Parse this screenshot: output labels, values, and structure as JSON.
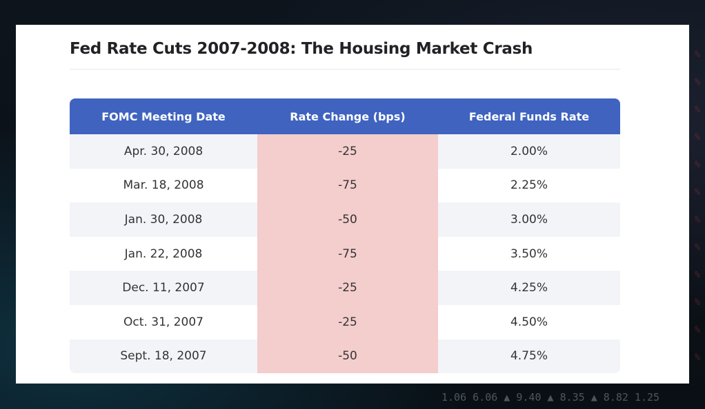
{
  "title": "Fed Rate Cuts 2007-2008: The Housing Market Crash",
  "table": {
    "headers": [
      "FOMC Meeting Date",
      "Rate Change (bps)",
      "Federal Funds Rate"
    ],
    "rows": [
      {
        "date": "Apr. 30, 2008",
        "change": "-25",
        "rate": "2.00%"
      },
      {
        "date": "Mar. 18, 2008",
        "change": "-75",
        "rate": "2.25%"
      },
      {
        "date": "Jan. 30, 2008",
        "change": "-50",
        "rate": "3.00%"
      },
      {
        "date": "Jan. 22, 2008",
        "change": "-75",
        "rate": "3.50%"
      },
      {
        "date": "Dec. 11, 2007",
        "change": "-25",
        "rate": "4.25%"
      },
      {
        "date": "Oct. 31, 2007",
        "change": "-25",
        "rate": "4.50%"
      },
      {
        "date": "Sept. 18, 2007",
        "change": "-50",
        "rate": "4.75%"
      }
    ],
    "colors": {
      "header_bg": "#3f63bf",
      "highlight_column": "#f4cdcd",
      "stripe": "#f3f4f8"
    }
  },
  "background": {
    "ticker_text": "1.06  6.06  ▲ 9.40  ▲ 8.35  ▲  8.82   1.25",
    "percent_glyphs": "% % % % % % % % % % % %"
  }
}
